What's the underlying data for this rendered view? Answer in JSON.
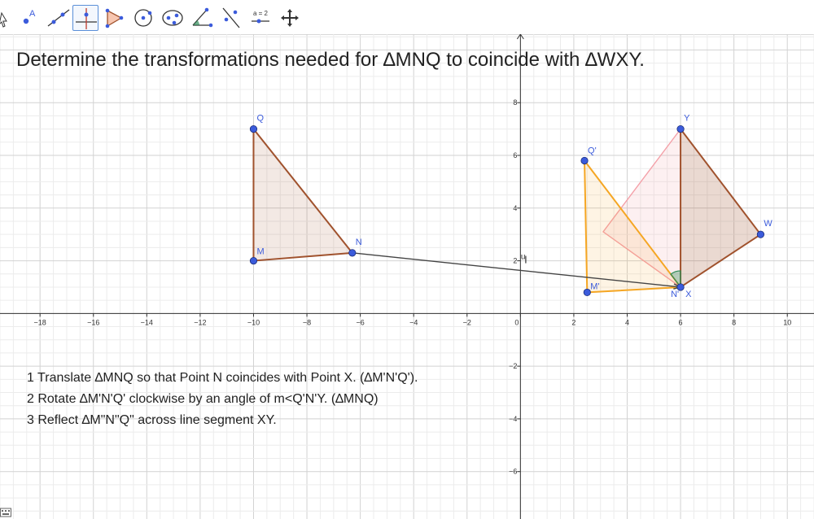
{
  "title": "Determine the transformations needed for ∆MNQ to coincide with ∆WXY.",
  "steps": [
    "1 Translate ∆MNQ so that Point N coincides with Point X.  (∆M'N'Q').",
    "2 Rotate ∆M'N'Q' clockwise by an angle of m<Q'N'Y.  (∆MNQ)",
    "3 Reflect ∆M\"N\"Q\" across line segment XY."
  ],
  "toolbar": {
    "slider_label": "a = 2",
    "point_label": "A",
    "tools": [
      "move-tool",
      "point-tool",
      "line-tool",
      "perpendicular-tool",
      "polygon-tool",
      "circle-tool",
      "conic-tool",
      "angle-tool",
      "reflect-tool",
      "slider-tool",
      "move-graphics-tool"
    ]
  },
  "axes": {
    "x_ticks": [
      "−18",
      "−16",
      "−14",
      "−12",
      "−10",
      "−8",
      "−6",
      "−4",
      "−2",
      "0",
      "2",
      "4",
      "6",
      "8",
      "10"
    ],
    "y_ticks": [
      "8",
      "6",
      "4",
      "2",
      "−2",
      "−4",
      "−6"
    ],
    "x_range": [
      -19.5,
      11
    ],
    "y_range": [
      -7.8,
      10.6
    ],
    "grid": true
  },
  "colors": {
    "brown": "#a0522d",
    "orange": "#f5a623",
    "pink": "#f4a0a8",
    "point": "#3b5bdb",
    "vector": "#444444"
  },
  "points": {
    "M": {
      "x": -10,
      "y": 2,
      "label": "M"
    },
    "N": {
      "x": -6.3,
      "y": 2.3,
      "label": "N"
    },
    "Q": {
      "x": -10,
      "y": 7,
      "label": "Q"
    },
    "M1": {
      "x": 2.5,
      "y": 0.8,
      "label": "M'"
    },
    "N1": {
      "x": 6,
      "y": 1,
      "label": "N'"
    },
    "Q1": {
      "x": 2.4,
      "y": 5.8,
      "label": "Q'"
    },
    "W": {
      "x": 9,
      "y": 3,
      "label": "W"
    },
    "X": {
      "x": 6,
      "y": 1,
      "label": "X"
    },
    "Y": {
      "x": 6,
      "y": 7,
      "label": "Y"
    },
    "P": {
      "x": 3.1,
      "y": 3.1,
      "label": ""
    },
    "U": {
      "x": 0.2,
      "y": 2,
      "label": "u"
    }
  }
}
